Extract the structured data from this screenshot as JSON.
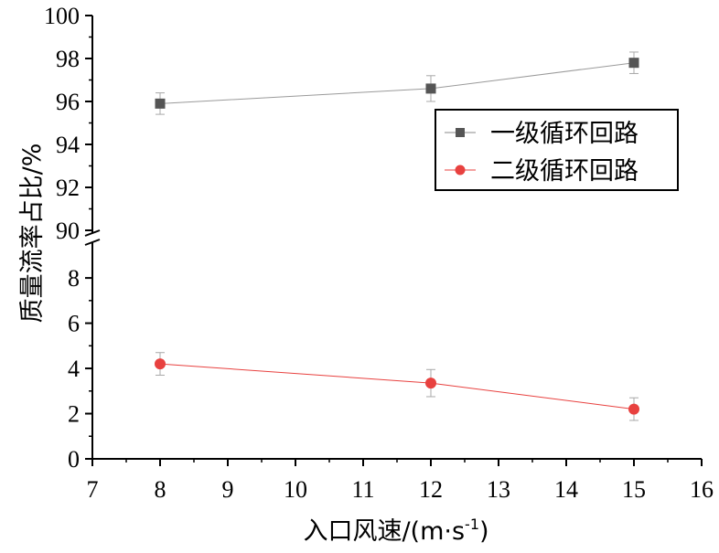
{
  "chart_data": {
    "type": "line",
    "xlabel": "入口风速/(m·s",
    "xlabel_sup": "-1",
    "xlabel_close": ")",
    "ylabel": "质量流率占比/%",
    "xlim": [
      7,
      16
    ],
    "x_ticks": [
      "7",
      "8",
      "9",
      "10",
      "11",
      "12",
      "13",
      "14",
      "15",
      "16"
    ],
    "y_axis_break": true,
    "ylim_lower": [
      0,
      9.5
    ],
    "y_ticks_lower": [
      "0",
      "2",
      "4",
      "6",
      "8"
    ],
    "ylim_upper": [
      90,
      100
    ],
    "y_ticks_upper": [
      "90",
      "92",
      "94",
      "96",
      "98",
      "100"
    ],
    "legend_position": "right-middle",
    "x": [
      8,
      12,
      15
    ],
    "series": [
      {
        "name": "一级循环回路",
        "values": [
          95.9,
          96.6,
          97.8
        ],
        "errors": [
          0.5,
          0.6,
          0.5
        ],
        "color": "#555555",
        "marker": "square"
      },
      {
        "name": "二级循环回路",
        "values": [
          4.2,
          3.35,
          2.2
        ],
        "errors": [
          0.5,
          0.6,
          0.5
        ],
        "color": "#e8413f",
        "marker": "circle"
      }
    ]
  }
}
